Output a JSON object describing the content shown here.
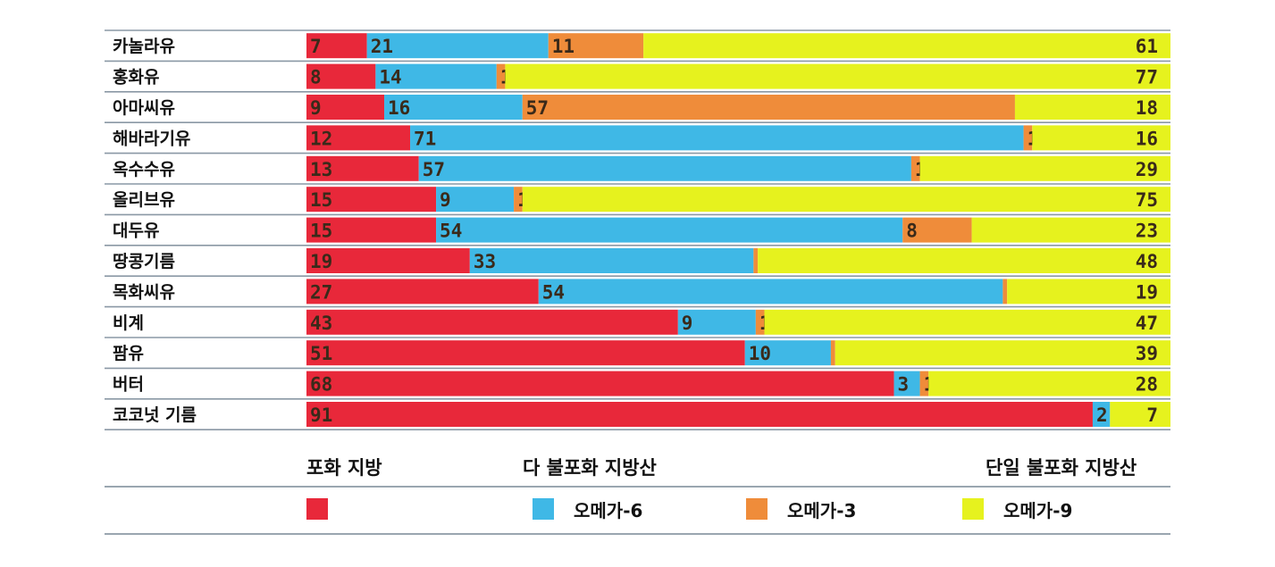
{
  "chart_data": {
    "type": "bar",
    "stacked": true,
    "normalized_percent": true,
    "categories": [
      "카놀라유",
      "홍화유",
      "아마씨유",
      "해바라기유",
      "옥수수유",
      "올리브유",
      "대두유",
      "땅콩기름",
      "목화씨유",
      "비계",
      "팜유",
      "버터",
      "코코넛 기름"
    ],
    "series": [
      {
        "key": "saturated",
        "color": "#e8283a",
        "values": [
          7,
          8,
          9,
          12,
          13,
          15,
          15,
          19,
          27,
          43,
          51,
          68,
          91
        ],
        "labels": [
          "7",
          "8",
          "9",
          "12",
          "13",
          "15",
          "15",
          "19",
          "27",
          "43",
          "51",
          "68",
          "91"
        ]
      },
      {
        "key": "omega6",
        "name": "오메가-6",
        "color": "#3fb8e6",
        "values": [
          21,
          14,
          16,
          71,
          57,
          9,
          54,
          33,
          54,
          9,
          10,
          3,
          2
        ],
        "labels": [
          "21",
          "14",
          "16",
          "71",
          "57",
          "9",
          "54",
          "33",
          "54",
          "9",
          "10",
          "3",
          "2"
        ]
      },
      {
        "key": "omega3",
        "name": "오메가-3",
        "color": "#ef8c3a",
        "values": [
          11,
          1,
          57,
          1,
          1,
          1,
          8,
          0.5,
          0.5,
          1,
          0.5,
          1,
          0
        ],
        "labels": [
          "11",
          "1",
          "57",
          "1",
          "1",
          "1",
          "8",
          "*",
          "*",
          "1",
          "*",
          "1",
          ""
        ]
      },
      {
        "key": "omega9",
        "name": "오메가-9",
        "color": "#e6f21e",
        "values": [
          61,
          77,
          18,
          16,
          29,
          75,
          23,
          48,
          19,
          47,
          39,
          28,
          7
        ],
        "labels": [
          "61",
          "77",
          "18",
          "16",
          "29",
          "75",
          "23",
          "48",
          "19",
          "47",
          "39",
          "28",
          "7"
        ]
      }
    ]
  },
  "legend": {
    "headers": {
      "saturated": "포화 지방",
      "polyunsaturated": "다 불포화 지방산",
      "monounsaturated": "단일 불포화 지방산"
    },
    "items": {
      "saturated": "",
      "omega6": "오메가-6",
      "omega3": "오메가-3",
      "omega9": "오메가-9"
    }
  }
}
